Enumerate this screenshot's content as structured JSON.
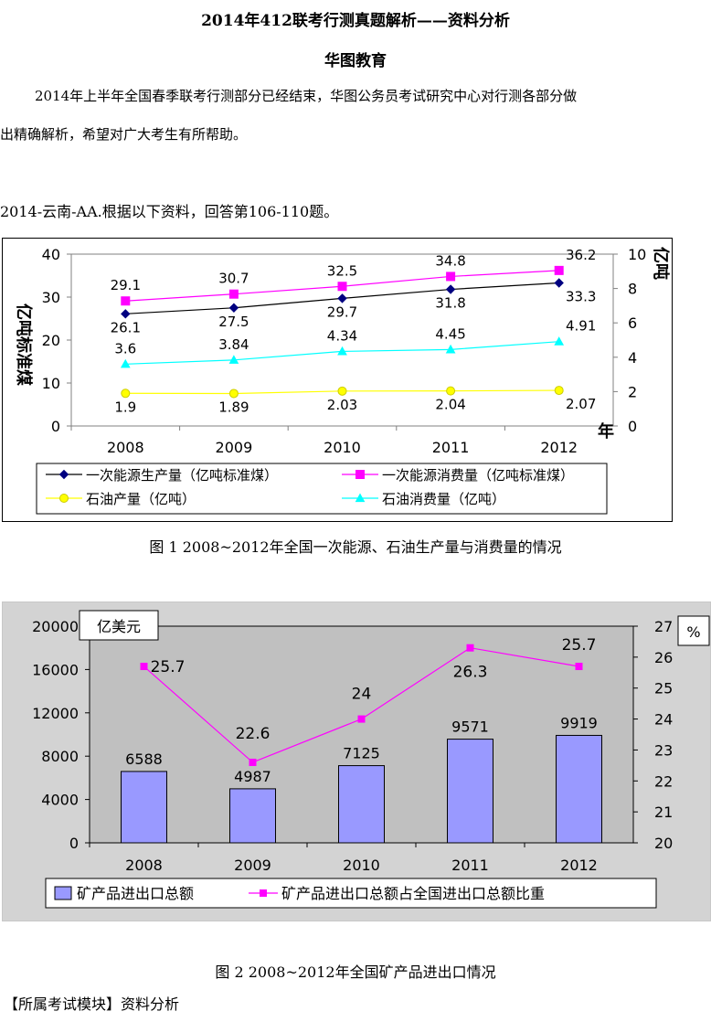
{
  "document": {
    "title": "2014年412联考行测真题解析——资料分析",
    "subtitle": "华图教育",
    "intro_line1": "2014年上半年全国春季联考行测部分已经结束，华图公务员考试研究中心对行测各部分做",
    "intro_line2": "出精确解析，希望对广大考生有所帮助。",
    "question_ref": "2014-云南-AA.根据以下资料，回答第106-110题。",
    "module": "【所属考试模块】资料分析"
  },
  "figures": [
    {
      "caption": "图  1        2008~2012年全国一次能源、石油生产量与消费量的情况"
    },
    {
      "caption": "图 2 2008~2012年全国矿产品进出口情况"
    }
  ],
  "chart_data": [
    {
      "type": "line",
      "categories": [
        "2008",
        "2009",
        "2010",
        "2011",
        "2012"
      ],
      "x_axis_unit": "年",
      "y_left_label": "亿吨标准煤",
      "y_right_label": "亿吨",
      "y_left_ticks": [
        "0",
        "10",
        "20",
        "30",
        "40"
      ],
      "y_right_ticks": [
        "0",
        "2",
        "4",
        "6",
        "8",
        "10"
      ],
      "ylim_left": [
        0,
        40
      ],
      "ylim_right": [
        0,
        10
      ],
      "grid": false,
      "legend_position": "bottom",
      "series": [
        {
          "name": "一次能源生产量（亿吨标准煤）",
          "axis": "left",
          "marker": "diamond",
          "color": "#000080",
          "values": [
            26.1,
            27.5,
            29.7,
            31.8,
            33.3
          ],
          "labels": [
            "26.1",
            "27.5",
            "29.7",
            "31.8",
            "33.3"
          ],
          "label_position": "below"
        },
        {
          "name": "一次能源消费量（亿吨标准煤）",
          "axis": "left",
          "marker": "square",
          "color": "#ff00ff",
          "values": [
            29.1,
            30.7,
            32.5,
            34.8,
            36.2
          ],
          "labels": [
            "29.1",
            "30.7",
            "32.5",
            "34.8",
            "36.2"
          ],
          "label_position": "above"
        },
        {
          "name": "石油产量（亿吨）",
          "axis": "right",
          "marker": "circle",
          "color": "#ffff00",
          "values": [
            1.9,
            1.89,
            2.03,
            2.04,
            2.07
          ],
          "labels": [
            "1.9",
            "1.89",
            "2.03",
            "2.04",
            "2.07"
          ],
          "label_position": "below"
        },
        {
          "name": "石油消费量（亿吨）",
          "axis": "right",
          "marker": "triangle",
          "color": "#00ffff",
          "values": [
            3.6,
            3.84,
            4.34,
            4.45,
            4.91
          ],
          "labels": [
            "3.6",
            "3.84",
            "4.34",
            "4.45",
            "4.91"
          ],
          "label_position": "above"
        }
      ]
    },
    {
      "type": "bar",
      "categories": [
        "2008",
        "2009",
        "2010",
        "2011",
        "2012"
      ],
      "y_left_label": "亿美元",
      "y_right_label": "%",
      "y_left_ticks": [
        "0",
        "4000",
        "8000",
        "12000",
        "16000",
        "20000"
      ],
      "y_right_ticks": [
        "20",
        "21",
        "22",
        "23",
        "24",
        "25",
        "26",
        "27"
      ],
      "ylim_left": [
        0,
        20000
      ],
      "ylim_right": [
        20,
        27
      ],
      "grid": false,
      "legend_position": "bottom",
      "series": [
        {
          "name": "矿产品进出口总额",
          "kind": "bar",
          "axis": "left",
          "color": "#9999ff",
          "values": [
            6588,
            4987,
            7125,
            9571,
            9919
          ],
          "labels": [
            "6588",
            "4987",
            "7125",
            "9571",
            "9919"
          ]
        },
        {
          "name": "矿产品进出口总额占全国进出口总额比重",
          "kind": "line",
          "axis": "right",
          "color": "#ff00ff",
          "values": [
            25.7,
            22.6,
            24,
            26.3,
            25.7
          ],
          "labels": [
            "25.7",
            "22.6",
            "24",
            "26.3",
            "25.7"
          ]
        }
      ]
    }
  ]
}
